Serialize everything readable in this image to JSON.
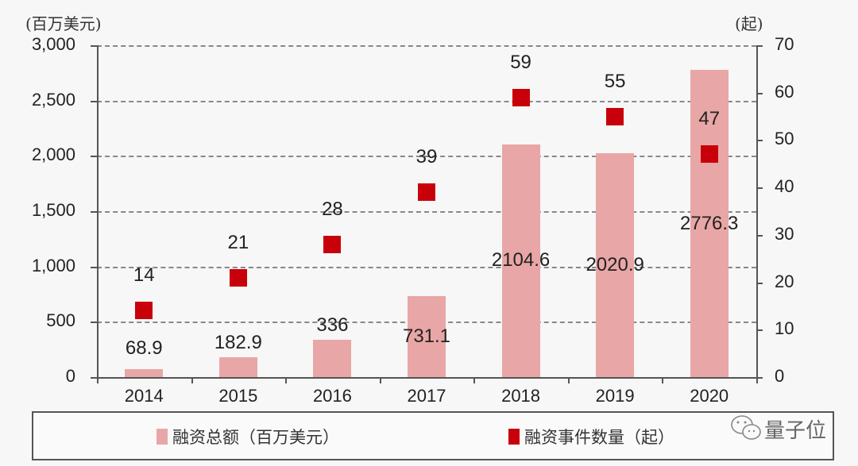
{
  "chart_data": {
    "type": "bar",
    "title": "",
    "categories": [
      "2014",
      "2015",
      "2016",
      "2017",
      "2018",
      "2019",
      "2020"
    ],
    "series": [
      {
        "name": "融资总额（百万美元）",
        "type": "bar",
        "axis": "left",
        "color": "#e9a6a6",
        "values": [
          68.9,
          182.9,
          336,
          731.1,
          2104.6,
          2020.9,
          2776.3
        ],
        "labels": [
          "68.9",
          "182.9",
          "336",
          "731.1",
          "2104.6",
          "2020.9",
          "2776.3"
        ]
      },
      {
        "name": "融资事件数量（起）",
        "type": "scatter",
        "axis": "right",
        "color": "#c8000a",
        "values": [
          14,
          21,
          28,
          39,
          59,
          55,
          47
        ],
        "labels": [
          "14",
          "21",
          "28",
          "39",
          "59",
          "55",
          "47"
        ]
      }
    ],
    "y_left": {
      "label": "(百万美元)",
      "ylim": [
        0,
        3000
      ],
      "ticks": [
        "0",
        "500",
        "1,000",
        "1,500",
        "2,000",
        "2,500",
        "3,000"
      ]
    },
    "y_right": {
      "label": "(起)",
      "ylim": [
        0,
        70
      ],
      "ticks": [
        "0",
        "10",
        "20",
        "30",
        "40",
        "50",
        "60",
        "70"
      ]
    },
    "grid": true,
    "legend_position": "bottom"
  },
  "axes": {
    "left_unit": "(百万美元)",
    "right_unit": "(起)",
    "left_ticks": [
      "0",
      "500",
      "1,000",
      "1,500",
      "2,000",
      "2,500",
      "3,000"
    ],
    "right_ticks": [
      "0",
      "10",
      "20",
      "30",
      "40",
      "50",
      "60",
      "70"
    ]
  },
  "legend": {
    "bar_label": "融资总额（百万美元）",
    "marker_label": "融资事件数量（起）"
  },
  "watermark": {
    "text": "量子位"
  }
}
